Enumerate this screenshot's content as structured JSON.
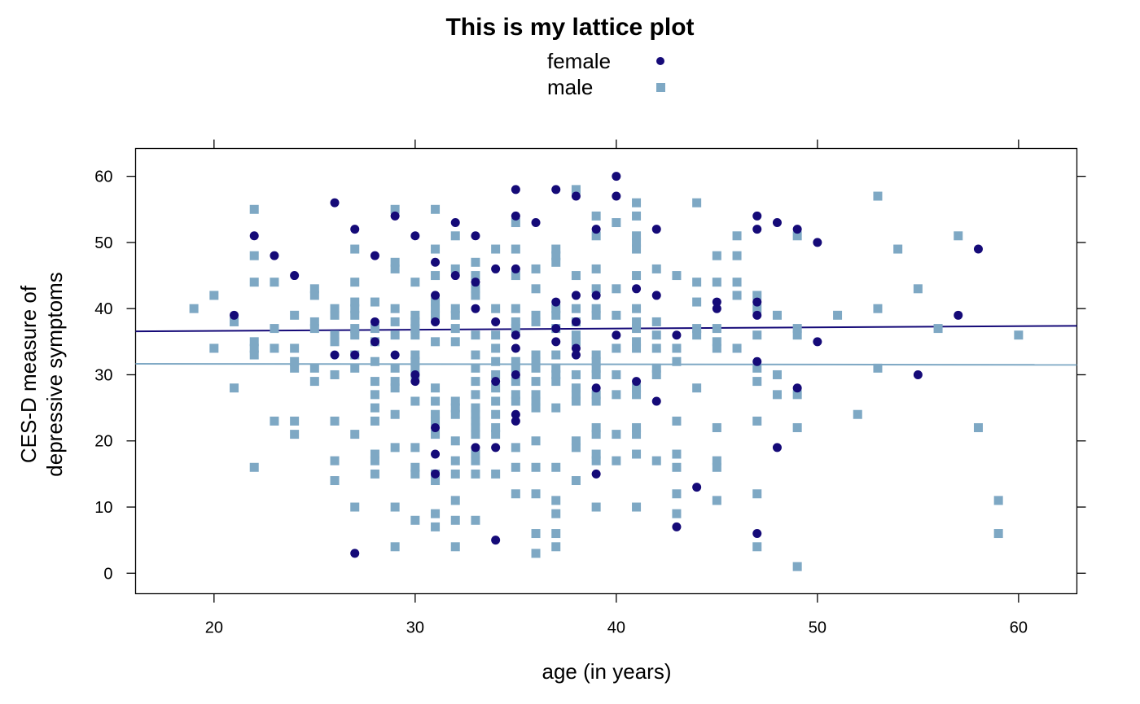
{
  "chart_data": {
    "type": "scatter",
    "title": "This is my lattice plot",
    "xlabel": "age (in years)",
    "ylabel": [
      "CES-D measure of",
      "depressive symptoms"
    ],
    "xlim": [
      16.1,
      62.9
    ],
    "ylim": [
      -3.1,
      64.2
    ],
    "xticks": [
      20,
      30,
      40,
      50,
      60
    ],
    "yticks": [
      0,
      10,
      20,
      30,
      40,
      50,
      60
    ],
    "grid": false,
    "legend": {
      "placement": "top-center",
      "entries": [
        "female",
        "male"
      ]
    },
    "colors": {
      "female": "#150A78",
      "male": "#7EA8C4"
    },
    "series": [
      {
        "name": "female",
        "marker": "circle",
        "points": {
          "21": [
            39
          ],
          "22": [
            51
          ],
          "23": [
            48
          ],
          "24": [
            45
          ],
          "26": [
            56,
            33
          ],
          "27": [
            52,
            33,
            3
          ],
          "28": [
            48,
            38,
            35
          ],
          "29": [
            54,
            33
          ],
          "30": [
            51,
            30,
            29
          ],
          "31": [
            47,
            42,
            38,
            22,
            18,
            15
          ],
          "32": [
            53,
            45
          ],
          "33": [
            51,
            44,
            40,
            19
          ],
          "34": [
            46,
            38,
            29,
            19,
            5
          ],
          "35": [
            58,
            54,
            46,
            36,
            34,
            30,
            24,
            23
          ],
          "36": [
            53
          ],
          "37": [
            58,
            41,
            37,
            35
          ],
          "38": [
            57,
            42,
            38,
            34,
            33
          ],
          "39": [
            52,
            42,
            28,
            15
          ],
          "40": [
            60,
            57,
            36
          ],
          "41": [
            43,
            29
          ],
          "42": [
            52,
            42,
            26
          ],
          "43": [
            36,
            7
          ],
          "44": [
            13
          ],
          "45": [
            41,
            40
          ],
          "47": [
            54,
            52,
            41,
            39,
            32,
            6
          ],
          "48": [
            53,
            19
          ],
          "49": [
            52,
            28
          ],
          "50": [
            50,
            35
          ],
          "55": [
            30
          ],
          "57": [
            39
          ],
          "58": [
            49
          ]
        },
        "fit_line": {
          "x": [
            16.1,
            62.9
          ],
          "y": [
            36.56,
            37.4
          ]
        }
      },
      {
        "name": "male",
        "marker": "square",
        "points": {
          "19": [
            40
          ],
          "20": [
            42,
            34
          ],
          "21": [
            38,
            28
          ],
          "22": [
            55,
            48,
            44,
            35,
            34,
            33,
            16
          ],
          "23": [
            44,
            37,
            34,
            23
          ],
          "24": [
            39,
            34,
            32,
            31,
            23,
            21
          ],
          "25": [
            43,
            42,
            38,
            37,
            31,
            29
          ],
          "26": [
            40,
            39,
            36,
            35,
            30,
            23,
            17,
            14
          ],
          "27": [
            49,
            44,
            41,
            40,
            39,
            37,
            36,
            33,
            31,
            21,
            10
          ],
          "28": [
            41,
            37,
            35,
            32,
            29,
            27,
            25,
            23,
            18,
            17,
            15
          ],
          "29": [
            55,
            47,
            46,
            40,
            38,
            36,
            31,
            29,
            28,
            24,
            19,
            10,
            4
          ],
          "30": [
            44,
            39,
            38,
            37,
            36,
            33,
            32,
            31,
            30,
            26,
            19,
            16,
            15,
            8
          ],
          "31": [
            55,
            49,
            45,
            41,
            40,
            39,
            35,
            28,
            26,
            24,
            23,
            21,
            15,
            14,
            9,
            7
          ],
          "32": [
            51,
            46,
            40,
            39,
            37,
            35,
            26,
            25,
            24,
            20,
            17,
            15,
            11,
            8,
            4
          ],
          "33": [
            47,
            45,
            43,
            42,
            36,
            33,
            31,
            29,
            27,
            25,
            24,
            23,
            22,
            21,
            18,
            17,
            15,
            8
          ],
          "34": [
            49,
            40,
            36,
            34,
            32,
            30,
            28,
            26,
            24,
            22,
            21,
            15
          ],
          "35": [
            53,
            49,
            45,
            40,
            38,
            37,
            32,
            31,
            29,
            27,
            26,
            19,
            16,
            12
          ],
          "36": [
            46,
            43,
            39,
            38,
            33,
            32,
            31,
            29,
            27,
            26,
            25,
            20,
            16,
            12,
            6,
            3
          ],
          "37": [
            49,
            48,
            47,
            40,
            39,
            37,
            33,
            31,
            30,
            29,
            25,
            16,
            11,
            9,
            6,
            4
          ],
          "38": [
            58,
            45,
            40,
            38,
            36,
            35,
            30,
            28,
            27,
            26,
            20,
            19,
            14
          ],
          "39": [
            54,
            51,
            46,
            43,
            40,
            39,
            33,
            32,
            31,
            30,
            27,
            26,
            22,
            21,
            18,
            17,
            10
          ],
          "40": [
            53,
            43,
            39,
            34,
            30,
            27,
            21,
            17
          ],
          "41": [
            56,
            54,
            51,
            50,
            49,
            45,
            40,
            38,
            37,
            35,
            34,
            28,
            27,
            22,
            21,
            18,
            10
          ],
          "42": [
            46,
            38,
            36,
            34,
            31,
            30,
            17
          ],
          "43": [
            45,
            34,
            32,
            23,
            18,
            16,
            12,
            9
          ],
          "44": [
            56,
            44,
            41,
            37,
            36,
            28
          ],
          "45": [
            48,
            44,
            37,
            35,
            34,
            22,
            17,
            16,
            11
          ],
          "46": [
            51,
            48,
            44,
            42,
            34
          ],
          "47": [
            42,
            40,
            36,
            31,
            29,
            23,
            12,
            4
          ],
          "48": [
            39,
            30,
            27
          ],
          "49": [
            51,
            37,
            36,
            27,
            22,
            1
          ],
          "51": [
            39
          ],
          "52": [
            24
          ],
          "53": [
            57,
            40,
            31
          ],
          "54": [
            49
          ],
          "55": [
            43
          ],
          "56": [
            37
          ],
          "57": [
            51
          ],
          "58": [
            22
          ],
          "59": [
            11,
            6
          ],
          "60": [
            36
          ]
        },
        "fit_line": {
          "x": [
            16.1,
            62.9
          ],
          "y": [
            31.66,
            31.5
          ]
        }
      }
    ]
  }
}
